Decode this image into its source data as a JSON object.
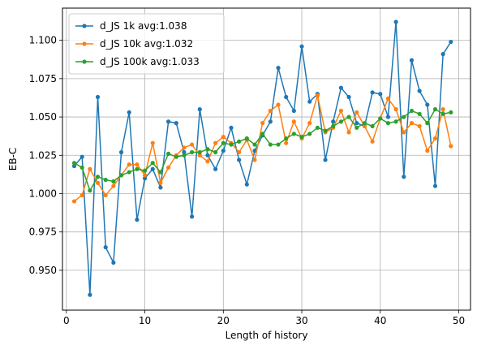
{
  "chart_data": {
    "type": "line",
    "xlabel": "Length of history",
    "ylabel": "EB-C",
    "xlim": [
      -0.5,
      51.5
    ],
    "ylim": [
      0.924,
      1.121
    ],
    "xticks": [
      0,
      10,
      20,
      30,
      40,
      50
    ],
    "yticks": [
      0.95,
      0.975,
      1.0,
      1.025,
      1.05,
      1.075,
      1.1
    ],
    "ytick_labels": [
      "0.950",
      "0.975",
      "1.000",
      "1.025",
      "1.050",
      "1.075",
      "1.100"
    ],
    "grid": true,
    "legend_position": "top-left",
    "x": [
      1,
      2,
      3,
      4,
      5,
      6,
      7,
      8,
      9,
      10,
      11,
      12,
      13,
      14,
      15,
      16,
      17,
      18,
      19,
      20,
      21,
      22,
      23,
      24,
      25,
      26,
      27,
      28,
      29,
      30,
      31,
      32,
      33,
      34,
      35,
      36,
      37,
      38,
      39,
      40,
      41,
      42,
      43,
      44,
      45,
      46,
      47,
      48,
      49
    ],
    "series": [
      {
        "name": "d_JS 1k avg:1.038",
        "color": "#1f77b4",
        "values": [
          1.018,
          1.024,
          0.934,
          1.063,
          0.965,
          0.955,
          1.027,
          1.053,
          0.983,
          1.01,
          1.016,
          1.004,
          1.047,
          1.046,
          1.027,
          0.985,
          1.055,
          1.025,
          1.016,
          1.028,
          1.043,
          1.022,
          1.006,
          1.028,
          1.038,
          1.047,
          1.082,
          1.063,
          1.054,
          1.096,
          1.06,
          1.065,
          1.022,
          1.047,
          1.069,
          1.063,
          1.046,
          1.044,
          1.066,
          1.065,
          1.05,
          1.112,
          1.011,
          1.087,
          1.067,
          1.058,
          1.005,
          1.091,
          1.099
        ]
      },
      {
        "name": "d_JS 10k avg:1.032",
        "color": "#ff7f0e",
        "values": [
          0.995,
          0.999,
          1.016,
          1.007,
          0.999,
          1.005,
          1.012,
          1.019,
          1.019,
          1.012,
          1.033,
          1.007,
          1.017,
          1.025,
          1.03,
          1.032,
          1.025,
          1.021,
          1.033,
          1.037,
          1.033,
          1.027,
          1.035,
          1.022,
          1.046,
          1.054,
          1.058,
          1.033,
          1.047,
          1.036,
          1.046,
          1.064,
          1.04,
          1.043,
          1.054,
          1.04,
          1.053,
          1.044,
          1.034,
          1.049,
          1.062,
          1.055,
          1.04,
          1.046,
          1.044,
          1.028,
          1.036,
          1.055,
          1.031
        ]
      },
      {
        "name": "d_JS 100k avg:1.033",
        "color": "#2ca02c",
        "values": [
          1.02,
          1.017,
          1.002,
          1.011,
          1.009,
          1.008,
          1.012,
          1.014,
          1.016,
          1.015,
          1.02,
          1.014,
          1.026,
          1.024,
          1.025,
          1.027,
          1.027,
          1.029,
          1.027,
          1.033,
          1.032,
          1.034,
          1.036,
          1.032,
          1.039,
          1.032,
          1.032,
          1.036,
          1.039,
          1.037,
          1.039,
          1.043,
          1.041,
          1.044,
          1.047,
          1.05,
          1.043,
          1.046,
          1.044,
          1.049,
          1.046,
          1.047,
          1.05,
          1.054,
          1.052,
          1.046,
          1.055,
          1.052,
          1.053
        ]
      }
    ]
  }
}
